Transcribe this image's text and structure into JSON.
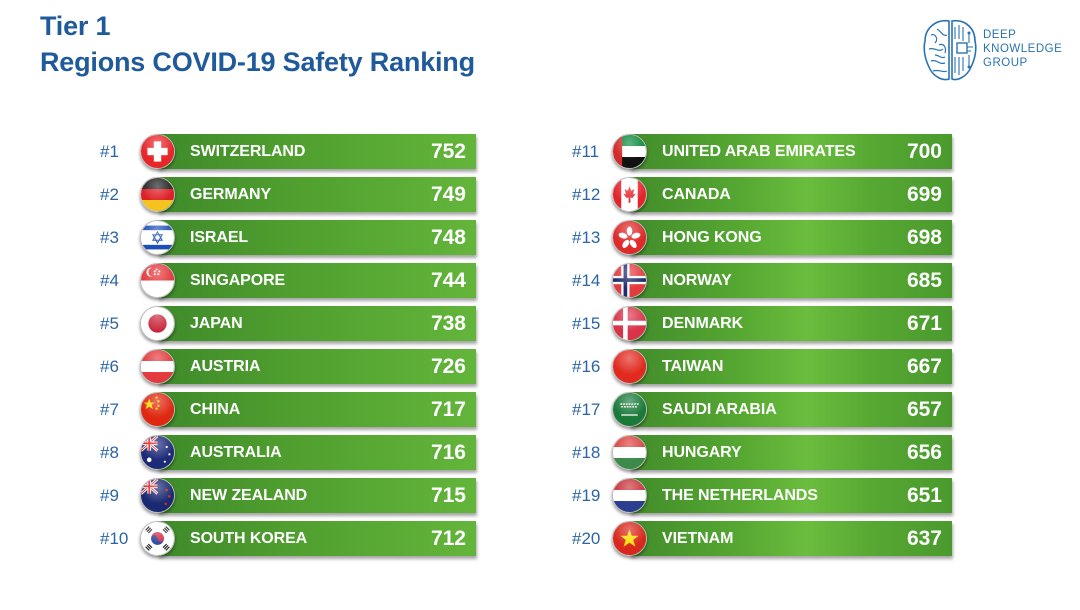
{
  "header": {
    "title_line1": "Tier 1",
    "title_line2": "Regions COVID-19 Safety Ranking"
  },
  "logo": {
    "icon": "brain-circuit-icon",
    "line1": "DEEP",
    "line2": "KNOWLEDGE",
    "line3": "GROUP"
  },
  "colors": {
    "title": "#1f5a9a",
    "rank_text": "#2a66a6",
    "bar_green": "#4f9e2f",
    "bar_text": "#ffffff"
  },
  "chart_data": {
    "type": "table",
    "title": "Tier 1 Regions COVID-19 Safety Ranking",
    "columns": [
      "rank",
      "region",
      "score"
    ],
    "rows": [
      {
        "rank": "#1",
        "region": "SWITZERLAND",
        "score": 752,
        "flag": "switzerland-flag-icon"
      },
      {
        "rank": "#2",
        "region": "GERMANY",
        "score": 749,
        "flag": "germany-flag-icon"
      },
      {
        "rank": "#3",
        "region": "ISRAEL",
        "score": 748,
        "flag": "israel-flag-icon"
      },
      {
        "rank": "#4",
        "region": "SINGAPORE",
        "score": 744,
        "flag": "singapore-flag-icon"
      },
      {
        "rank": "#5",
        "region": "JAPAN",
        "score": 738,
        "flag": "japan-flag-icon"
      },
      {
        "rank": "#6",
        "region": "AUSTRIA",
        "score": 726,
        "flag": "austria-flag-icon"
      },
      {
        "rank": "#7",
        "region": "CHINA",
        "score": 717,
        "flag": "china-flag-icon"
      },
      {
        "rank": "#8",
        "region": "AUSTRALIA",
        "score": 716,
        "flag": "australia-flag-icon"
      },
      {
        "rank": "#9",
        "region": "NEW ZEALAND",
        "score": 715,
        "flag": "new-zealand-flag-icon"
      },
      {
        "rank": "#10",
        "region": "SOUTH KOREA",
        "score": 712,
        "flag": "south-korea-flag-icon"
      },
      {
        "rank": "#11",
        "region": "UNITED ARAB EMIRATES",
        "score": 700,
        "flag": "uae-flag-icon"
      },
      {
        "rank": "#12",
        "region": "CANADA",
        "score": 699,
        "flag": "canada-flag-icon"
      },
      {
        "rank": "#13",
        "region": "HONG KONG",
        "score": 698,
        "flag": "hong-kong-flag-icon"
      },
      {
        "rank": "#14",
        "region": "NORWAY",
        "score": 685,
        "flag": "norway-flag-icon"
      },
      {
        "rank": "#15",
        "region": "DENMARK",
        "score": 671,
        "flag": "denmark-flag-icon"
      },
      {
        "rank": "#16",
        "region": "TAIWAN",
        "score": 667,
        "flag": "taiwan-flag-icon"
      },
      {
        "rank": "#17",
        "region": "SAUDI ARABIA",
        "score": 657,
        "flag": "saudi-arabia-flag-icon"
      },
      {
        "rank": "#18",
        "region": "HUNGARY",
        "score": 656,
        "flag": "hungary-flag-icon"
      },
      {
        "rank": "#19",
        "region": "THE NETHERLANDS",
        "score": 651,
        "flag": "netherlands-flag-icon"
      },
      {
        "rank": "#20",
        "region": "VIETNAM",
        "score": 637,
        "flag": "vietnam-flag-icon"
      }
    ]
  }
}
